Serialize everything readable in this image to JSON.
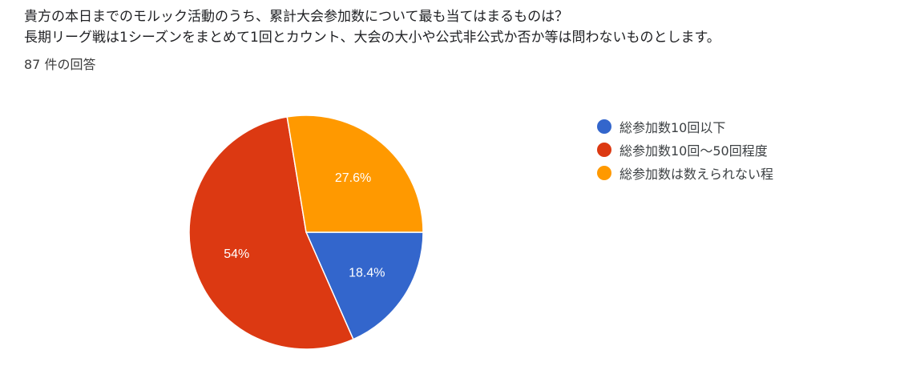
{
  "question": {
    "line1": "貴方の本日までのモルック活動のうち、累計大会参加数について最も当てはまるものは？",
    "line2": "長期リーグ戦は1シーズンをまとめて1回とカウント、大会の大小や公式非公式か否か等は問わないものとします。"
  },
  "response_count": "87 件の回答",
  "chart_data": {
    "type": "pie",
    "title": "貴方の本日までのモルック活動のうち、累計大会参加数について最も当てはまるものは？",
    "total_responses": 87,
    "categories": [
      "総参加数10回以下",
      "総参加数10回〜50回程度",
      "総参加数は数えられない程"
    ],
    "values": [
      18.4,
      54,
      27.6
    ],
    "labels": [
      "18.4%",
      "54%",
      "27.6%"
    ],
    "colors": [
      "#3366cc",
      "#dc3912",
      "#ff9900"
    ],
    "legend_position": "right",
    "start_angle": "3 o'clock, clockwise"
  },
  "legend": [
    {
      "label": "総参加数10回以下",
      "color": "#3366cc"
    },
    {
      "label": "総参加数10回〜50回程度",
      "color": "#dc3912"
    },
    {
      "label": "総参加数は数えられない程",
      "color": "#ff9900"
    }
  ]
}
